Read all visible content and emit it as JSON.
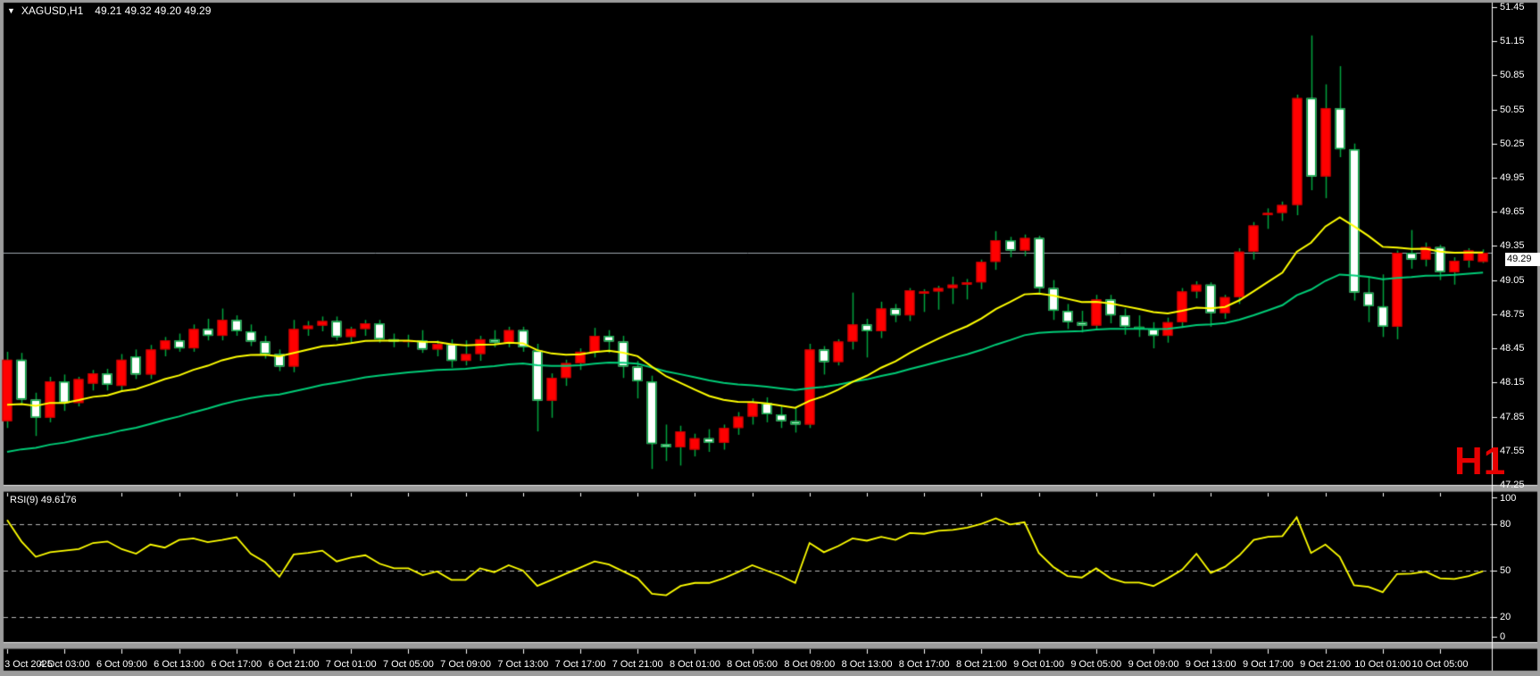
{
  "title": {
    "dropdown_icon": "▼",
    "symbol": "XAGUSD,H1",
    "ohlc": "49.21 49.32 49.20 49.29"
  },
  "rsi_panel_label": "RSI(9) 49.6176",
  "timeframe_badge": "H1",
  "price_tag": "49.29",
  "colors": {
    "background": "#000000",
    "border_gray": "#9c9c9c",
    "up_body": "#ff0000",
    "down_body": "#ffffff",
    "wick_green": "#00a33e",
    "ma_fast": "#ffff00",
    "ma_slow": "#00cc77",
    "rsi_line": "#ffff00",
    "level_dash": "#b8b8b8",
    "price_line": "#9fa8b0",
    "axis_text": "#ffffff",
    "badge_red": "#e60000"
  },
  "chart_data": {
    "type": "candlestick",
    "symbol": "XAGUSD",
    "timeframe": "H1",
    "title": "XAGUSD,H1 49.21 49.32 49.20 49.29",
    "current_bar": {
      "open": 49.21,
      "high": 49.32,
      "low": 49.2,
      "close": 49.29
    },
    "price_line": 49.29,
    "price_axis": {
      "min": 47.25,
      "max": 51.45,
      "step": 0.3,
      "labels": [
        "51.45",
        "51.15",
        "50.85",
        "50.55",
        "50.25",
        "49.95",
        "49.65",
        "49.35",
        "49.05",
        "48.75",
        "48.45",
        "48.15",
        "47.85",
        "47.55",
        "47.25"
      ]
    },
    "time_axis": {
      "labels": [
        "3 Oct 2025",
        "4 Oct 03:00",
        "6 Oct 09:00",
        "6 Oct 13:00",
        "6 Oct 17:00",
        "6 Oct 21:00",
        "7 Oct 01:00",
        "7 Oct 05:00",
        "7 Oct 09:00",
        "7 Oct 13:00",
        "7 Oct 17:00",
        "7 Oct 21:00",
        "8 Oct 01:00",
        "8 Oct 05:00",
        "8 Oct 09:00",
        "8 Oct 13:00",
        "8 Oct 17:00",
        "8 Oct 21:00",
        "9 Oct 01:00",
        "9 Oct 05:00",
        "9 Oct 09:00",
        "9 Oct 13:00",
        "9 Oct 17:00",
        "9 Oct 21:00",
        "10 Oct 01:00",
        "10 Oct 05:00"
      ],
      "candles_per_tick": 4
    },
    "candles": [
      [
        47.81,
        48.42,
        47.75,
        48.35
      ],
      [
        48.35,
        48.41,
        47.96,
        48.0
      ],
      [
        48.0,
        48.06,
        47.68,
        47.84
      ],
      [
        47.84,
        48.2,
        47.8,
        48.16
      ],
      [
        48.16,
        48.22,
        47.9,
        47.97
      ],
      [
        47.97,
        48.2,
        47.94,
        48.18
      ],
      [
        48.14,
        48.26,
        48.08,
        48.23
      ],
      [
        48.23,
        48.27,
        48.08,
        48.13
      ],
      [
        48.12,
        48.4,
        48.08,
        48.35
      ],
      [
        48.38,
        48.44,
        48.18,
        48.22
      ],
      [
        48.22,
        48.48,
        48.18,
        48.44
      ],
      [
        48.44,
        48.55,
        48.38,
        48.52
      ],
      [
        48.52,
        48.58,
        48.42,
        48.45
      ],
      [
        48.45,
        48.66,
        48.42,
        48.62
      ],
      [
        48.62,
        48.71,
        48.52,
        48.56
      ],
      [
        48.56,
        48.8,
        48.52,
        48.7
      ],
      [
        48.7,
        48.74,
        48.56,
        48.6
      ],
      [
        48.6,
        48.66,
        48.47,
        48.51
      ],
      [
        48.51,
        48.56,
        48.36,
        48.4
      ],
      [
        48.4,
        48.44,
        48.25,
        48.29
      ],
      [
        48.29,
        48.7,
        48.24,
        48.62
      ],
      [
        48.62,
        48.69,
        48.56,
        48.65
      ],
      [
        48.65,
        48.73,
        48.6,
        48.69
      ],
      [
        48.69,
        48.73,
        48.52,
        48.55
      ],
      [
        48.55,
        48.64,
        48.5,
        48.62
      ],
      [
        48.62,
        48.7,
        48.56,
        48.67
      ],
      [
        48.67,
        48.7,
        48.5,
        48.53
      ],
      [
        48.53,
        48.58,
        48.46,
        48.51
      ],
      [
        48.51,
        48.57,
        48.46,
        48.52
      ],
      [
        48.52,
        48.61,
        48.41,
        48.44
      ],
      [
        48.44,
        48.52,
        48.38,
        48.49
      ],
      [
        48.49,
        48.53,
        48.28,
        48.34
      ],
      [
        48.34,
        48.52,
        48.3,
        48.4
      ],
      [
        48.4,
        48.56,
        48.34,
        48.53
      ],
      [
        48.53,
        48.61,
        48.46,
        48.5
      ],
      [
        48.5,
        48.64,
        48.46,
        48.61
      ],
      [
        48.61,
        48.64,
        48.42,
        48.46
      ],
      [
        48.43,
        48.49,
        47.72,
        47.99
      ],
      [
        47.99,
        48.23,
        47.84,
        48.19
      ],
      [
        48.19,
        48.35,
        48.12,
        48.32
      ],
      [
        48.32,
        48.45,
        48.26,
        48.42
      ],
      [
        48.42,
        48.63,
        48.37,
        48.56
      ],
      [
        48.56,
        48.61,
        48.41,
        48.51
      ],
      [
        48.51,
        48.56,
        48.19,
        48.29
      ],
      [
        48.29,
        48.34,
        48.01,
        48.16
      ],
      [
        48.16,
        48.21,
        47.39,
        47.61
      ],
      [
        47.61,
        47.78,
        47.46,
        47.58
      ],
      [
        47.58,
        47.77,
        47.42,
        47.72
      ],
      [
        47.56,
        47.7,
        47.5,
        47.66
      ],
      [
        47.66,
        47.74,
        47.54,
        47.62
      ],
      [
        47.62,
        47.78,
        47.56,
        47.75
      ],
      [
        47.75,
        47.89,
        47.69,
        47.85
      ],
      [
        47.85,
        48.01,
        47.78,
        47.97
      ],
      [
        47.97,
        48.02,
        47.8,
        47.87
      ],
      [
        47.87,
        47.94,
        47.75,
        47.81
      ],
      [
        47.81,
        47.93,
        47.71,
        47.78
      ],
      [
        47.78,
        48.49,
        47.75,
        48.44
      ],
      [
        48.44,
        48.47,
        48.22,
        48.33
      ],
      [
        48.33,
        48.53,
        48.3,
        48.51
      ],
      [
        48.51,
        48.94,
        48.44,
        48.66
      ],
      [
        48.66,
        48.71,
        48.37,
        48.6
      ],
      [
        48.6,
        48.86,
        48.54,
        48.8
      ],
      [
        48.8,
        48.84,
        48.68,
        48.74
      ],
      [
        48.74,
        48.98,
        48.69,
        48.96
      ],
      [
        48.93,
        48.97,
        48.77,
        48.95
      ],
      [
        48.95,
        49.0,
        48.79,
        48.98
      ],
      [
        48.98,
        49.08,
        48.84,
        49.01
      ],
      [
        49.01,
        49.06,
        48.88,
        49.03
      ],
      [
        49.03,
        49.23,
        48.97,
        49.21
      ],
      [
        49.21,
        49.48,
        49.14,
        49.4
      ],
      [
        49.4,
        49.43,
        49.25,
        49.31
      ],
      [
        49.31,
        49.45,
        49.26,
        49.42
      ],
      [
        49.42,
        49.44,
        48.92,
        48.98
      ],
      [
        48.98,
        49.05,
        48.7,
        48.78
      ],
      [
        48.78,
        48.84,
        48.62,
        48.68
      ],
      [
        48.68,
        48.78,
        48.59,
        48.65
      ],
      [
        48.65,
        48.92,
        48.61,
        48.88
      ],
      [
        48.88,
        48.92,
        48.67,
        48.74
      ],
      [
        48.74,
        48.8,
        48.57,
        48.64
      ],
      [
        48.64,
        48.74,
        48.55,
        48.62
      ],
      [
        48.62,
        48.68,
        48.45,
        48.56
      ],
      [
        48.56,
        48.72,
        48.5,
        48.68
      ],
      [
        48.68,
        48.98,
        48.63,
        48.95
      ],
      [
        48.95,
        49.04,
        48.89,
        49.01
      ],
      [
        49.01,
        49.03,
        48.64,
        48.76
      ],
      [
        48.76,
        48.92,
        48.71,
        48.9
      ],
      [
        48.9,
        49.33,
        48.84,
        49.3
      ],
      [
        49.3,
        49.56,
        49.23,
        49.53
      ],
      [
        49.62,
        49.68,
        49.5,
        49.64
      ],
      [
        49.64,
        49.74,
        49.57,
        49.71
      ],
      [
        49.71,
        50.68,
        49.62,
        50.65
      ],
      [
        50.65,
        51.2,
        49.84,
        49.96
      ],
      [
        49.96,
        50.77,
        49.77,
        50.56
      ],
      [
        50.56,
        50.93,
        50.13,
        50.2
      ],
      [
        50.2,
        50.25,
        48.87,
        48.94
      ],
      [
        48.94,
        49.07,
        48.68,
        48.82
      ],
      [
        48.82,
        49.1,
        48.55,
        48.64
      ],
      [
        48.64,
        49.31,
        48.53,
        49.29
      ],
      [
        49.29,
        49.49,
        49.15,
        49.23
      ],
      [
        49.23,
        49.38,
        49.17,
        49.34
      ],
      [
        49.34,
        49.36,
        49.05,
        49.12
      ],
      [
        49.12,
        49.25,
        49.01,
        49.22
      ],
      [
        49.22,
        49.33,
        49.16,
        49.31
      ],
      [
        49.21,
        49.32,
        49.2,
        49.29
      ]
    ],
    "rsi": {
      "title": "RSI(9)",
      "current": 49.6176,
      "ylim": [
        0,
        100
      ],
      "levels": [
        80,
        50,
        20
      ],
      "axis_labels": [
        "100",
        "80",
        "50",
        "20",
        "0"
      ],
      "values": [
        83,
        69,
        59,
        62,
        63,
        64,
        68,
        69,
        64,
        61,
        67,
        65,
        70,
        71,
        68.5,
        70,
        71.8,
        61,
        55.5,
        46,
        60.5,
        61.5,
        63,
        56,
        58.5,
        60,
        54.5,
        51.5,
        51.5,
        47,
        49.5,
        44,
        44,
        51.5,
        49,
        53.5,
        50,
        40,
        44,
        48,
        52,
        56,
        54,
        49.5,
        45,
        35,
        34,
        40,
        42,
        42,
        45,
        49,
        53.5,
        50,
        46.5,
        42,
        68,
        62,
        66,
        71,
        69.5,
        72,
        70,
        74.5,
        74,
        76,
        76.5,
        78,
        80.5,
        84,
        80,
        81.5,
        61.5,
        52.5,
        46.5,
        45.5,
        51.5,
        45,
        42.2,
        42.2,
        40,
        45,
        50.5,
        61,
        48.5,
        52.5,
        60,
        70,
        72,
        72.5,
        84.7,
        61.5,
        67,
        59,
        40.5,
        39.5,
        36,
        47.8,
        48,
        49.3,
        45,
        44.6,
        46.5,
        49.62
      ]
    }
  }
}
